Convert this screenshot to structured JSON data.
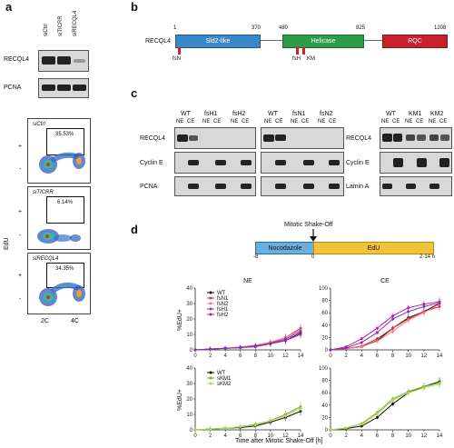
{
  "panels": {
    "a": "a",
    "b": "b",
    "c": "c",
    "d": "d"
  },
  "panel_a": {
    "lanes": [
      "siCtrl",
      "siTICRR",
      "siRECQL4"
    ],
    "blot_labels": [
      "RECQL4",
      "PCNA"
    ],
    "facs_plots": [
      {
        "condition": "siCtrl",
        "percent": "35.53%"
      },
      {
        "condition": "siTICRR",
        "percent": "6.14%"
      },
      {
        "condition": "siRECQL4",
        "percent": "34.35%"
      }
    ],
    "y_axis_label": "EdU",
    "plus_sign": "+",
    "minus_sign": "-",
    "x_ticks": [
      "2C",
      "4C"
    ]
  },
  "panel_b": {
    "protein": "RECQL4",
    "positions": [
      "1",
      "370",
      "480",
      "825",
      "1208"
    ],
    "domains": [
      {
        "name": "Sld2-like",
        "color": "#3a87c8"
      },
      {
        "name": "Helicase",
        "color": "#2e9b48"
      },
      {
        "name": "RQC",
        "color": "#c8202c"
      }
    ],
    "mutants": [
      "fsN",
      "fsH",
      "KM"
    ],
    "mutant_color": "#d02020"
  },
  "panel_c": {
    "left_blot": {
      "groups": [
        "WT",
        "fsH1",
        "fsH2",
        "WT",
        "fsN1",
        "fsN2"
      ],
      "fraction_labels": [
        "NE",
        "CE"
      ],
      "rows": [
        "RECQL4",
        "Cyclin E",
        "PCNA"
      ]
    },
    "right_blot": {
      "groups": [
        "WT",
        "KM1",
        "KM2"
      ],
      "fraction_labels": [
        "NE",
        "CE"
      ],
      "rows": [
        "RECQL4",
        "Cyclin E",
        "Lamin A"
      ]
    }
  },
  "panel_d": {
    "timeline": {
      "event": "Mitotic Shake-Off",
      "phase1": "Nocodazole",
      "phase2": "EdU",
      "phase1_color": "#6ab0de",
      "phase2_color": "#f2c23a",
      "tick_labels": [
        "-8",
        "0",
        "2-14 h"
      ]
    },
    "ylabel": "%EdU+",
    "xlabel": "Time after Mitotic Shake-Off [h]"
  },
  "chart_data": [
    {
      "type": "line",
      "title": "NE",
      "ylabel": "%EdU+",
      "xlabel": "",
      "x": [
        0,
        2,
        4,
        6,
        8,
        10,
        12,
        14
      ],
      "ylim": [
        0,
        40
      ],
      "yticks": [
        "0",
        "10",
        "20",
        "30",
        "40"
      ],
      "xticks": [
        "0",
        "2",
        "4",
        "6",
        "8",
        "10",
        "12",
        "14"
      ],
      "legend": "top-left",
      "series": [
        {
          "name": "WT",
          "color": "#111111",
          "values": [
            0,
            0.5,
            1,
            1.5,
            2.5,
            4,
            6,
            11
          ]
        },
        {
          "name": "fsN1",
          "color": "#e03030",
          "values": [
            0,
            0.5,
            1,
            1.5,
            2.5,
            4.5,
            8,
            14
          ]
        },
        {
          "name": "fsN2",
          "color": "#f08080",
          "values": [
            0,
            0.5,
            1,
            2,
            3,
            5,
            8,
            13
          ]
        },
        {
          "name": "fsH1",
          "color": "#c020a0",
          "values": [
            0,
            0.5,
            1,
            1.5,
            2,
            4,
            6,
            10
          ]
        },
        {
          "name": "fsH2",
          "color": "#8030c0",
          "values": [
            0,
            0.5,
            1,
            1.5,
            2.5,
            4,
            7,
            12
          ]
        }
      ]
    },
    {
      "type": "line",
      "title": "CE",
      "ylabel": "",
      "xlabel": "",
      "x": [
        0,
        2,
        4,
        6,
        8,
        10,
        12,
        14
      ],
      "ylim": [
        0,
        100
      ],
      "yticks": [
        "0",
        "20",
        "40",
        "60",
        "80",
        "100"
      ],
      "xticks": [
        "0",
        "2",
        "4",
        "6",
        "8",
        "10",
        "12",
        "14"
      ],
      "series": [
        {
          "name": "WT",
          "color": "#111111",
          "values": [
            0,
            2,
            5,
            15,
            35,
            52,
            62,
            75
          ]
        },
        {
          "name": "fsN1",
          "color": "#e03030",
          "values": [
            0,
            2,
            6,
            18,
            35,
            50,
            62,
            70
          ]
        },
        {
          "name": "fsN2",
          "color": "#f08080",
          "values": [
            0,
            2,
            5,
            14,
            30,
            48,
            60,
            74
          ]
        },
        {
          "name": "fsH1",
          "color": "#c020a0",
          "values": [
            0,
            5,
            18,
            35,
            55,
            68,
            74,
            78
          ]
        },
        {
          "name": "fsH2",
          "color": "#8030c0",
          "values": [
            0,
            3,
            12,
            28,
            50,
            62,
            70,
            76
          ]
        }
      ]
    },
    {
      "type": "line",
      "title": "",
      "ylabel": "%EdU+",
      "xlabel": "",
      "x": [
        0,
        2,
        4,
        6,
        8,
        10,
        12,
        14
      ],
      "ylim": [
        0,
        40
      ],
      "yticks": [
        "0",
        "10",
        "20",
        "30",
        "40"
      ],
      "xticks": [
        "0",
        "2",
        "4",
        "6",
        "8",
        "10",
        "12",
        "14"
      ],
      "legend": "top-left",
      "series": [
        {
          "name": "WT",
          "color": "#111111",
          "values": [
            0,
            0.5,
            1,
            1.5,
            2.5,
            5,
            8,
            12
          ]
        },
        {
          "name": "sKM1",
          "color": "#70b030",
          "values": [
            0,
            0.5,
            1,
            2,
            3.5,
            6,
            10,
            15
          ]
        },
        {
          "name": "sKM2",
          "color": "#b0d848",
          "values": [
            0,
            0.5,
            1,
            2,
            3,
            6,
            9,
            14
          ]
        }
      ]
    },
    {
      "type": "line",
      "title": "",
      "ylabel": "",
      "xlabel": "Time after Mitotic Shake-Off [h]",
      "x": [
        0,
        2,
        4,
        6,
        8,
        10,
        12,
        14
      ],
      "ylim": [
        0,
        100
      ],
      "yticks": [
        "0",
        "20",
        "40",
        "60",
        "80",
        "100"
      ],
      "xticks": [
        "0",
        "2",
        "4",
        "6",
        "8",
        "10",
        "12",
        "14"
      ],
      "series": [
        {
          "name": "WT",
          "color": "#111111",
          "values": [
            0,
            2,
            6,
            20,
            42,
            60,
            70,
            78
          ]
        },
        {
          "name": "sKM1",
          "color": "#70b030",
          "values": [
            0,
            3,
            10,
            28,
            50,
            62,
            70,
            76
          ]
        },
        {
          "name": "sKM2",
          "color": "#b0d848",
          "values": [
            0,
            3,
            9,
            26,
            48,
            60,
            68,
            74
          ]
        }
      ]
    }
  ]
}
